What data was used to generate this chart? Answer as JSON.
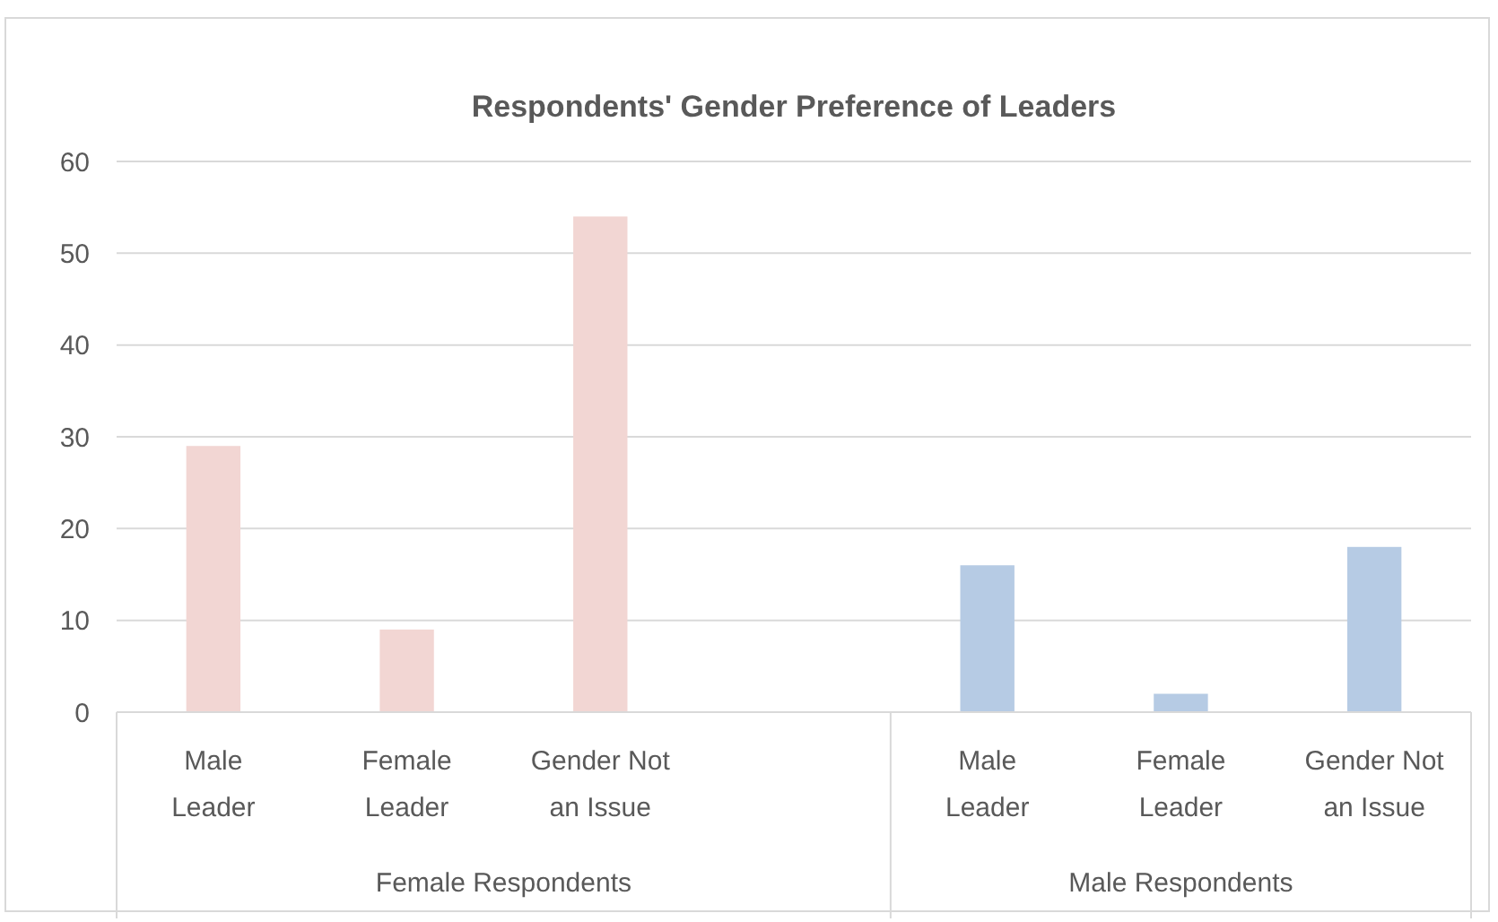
{
  "chart_data": {
    "type": "bar",
    "title": "Respondents' Gender Preference of Leaders",
    "categories": [
      "Male Leader",
      "Female Leader",
      "Gender Not an Issue",
      null,
      "Male Leader",
      "Female Leader",
      "Gender Not an Issue"
    ],
    "values": [
      29,
      9,
      54,
      null,
      16,
      2,
      18
    ],
    "colors": [
      "#f2d6d3",
      "#f2d6d3",
      "#f2d6d3",
      null,
      "#b6cbe4",
      "#b6cbe4",
      "#b6cbe4"
    ],
    "ylim": [
      0,
      60
    ],
    "yticks": [
      0,
      10,
      20,
      30,
      40,
      50,
      60
    ],
    "grid": "y",
    "annotations": [
      "Female Respondents",
      "Male Respondents"
    ]
  }
}
